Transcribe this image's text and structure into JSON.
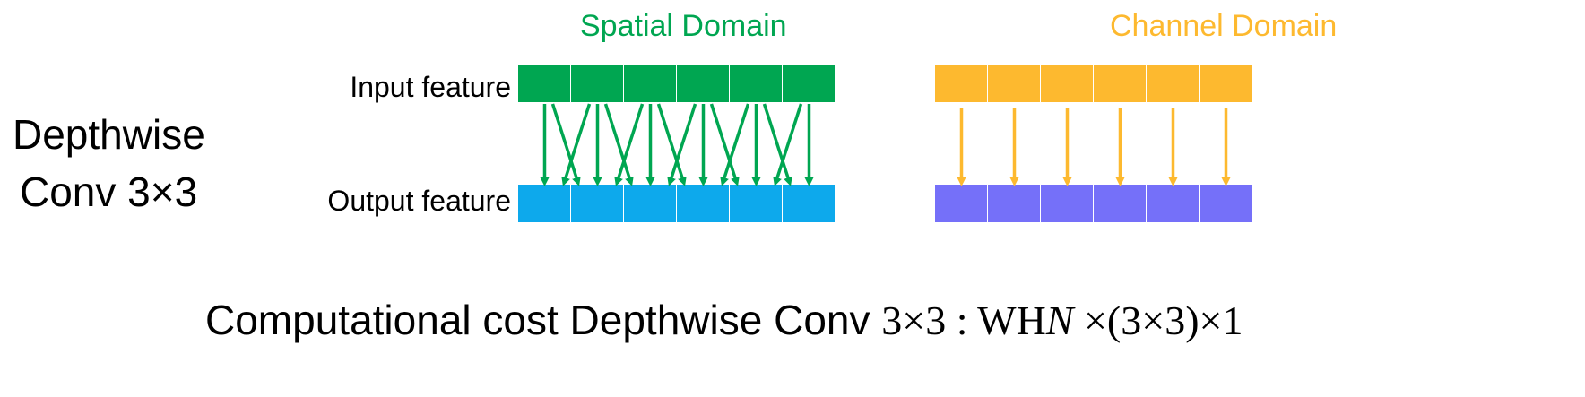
{
  "left_title": {
    "line1": "Depthwise",
    "line2": "Conv 3×3"
  },
  "spatial_domain": {
    "title": "Spatial Domain",
    "input_label": "Input feature",
    "output_label": "Output feature",
    "cells": 6,
    "kernel": 3,
    "input_color": "#00A651",
    "output_color": "#0DA9EC",
    "arrow_color": "#00A651"
  },
  "channel_domain": {
    "title": "Channel Domain",
    "cells": 6,
    "input_color": "#FDB92F",
    "output_color": "#7570F9",
    "arrow_color": "#FDB92F"
  },
  "cost": {
    "prefix": "Computational cost Depthwise Conv ",
    "math1": "3×3 : WH",
    "var": "N",
    "math2": " ×(3×3)×1"
  }
}
